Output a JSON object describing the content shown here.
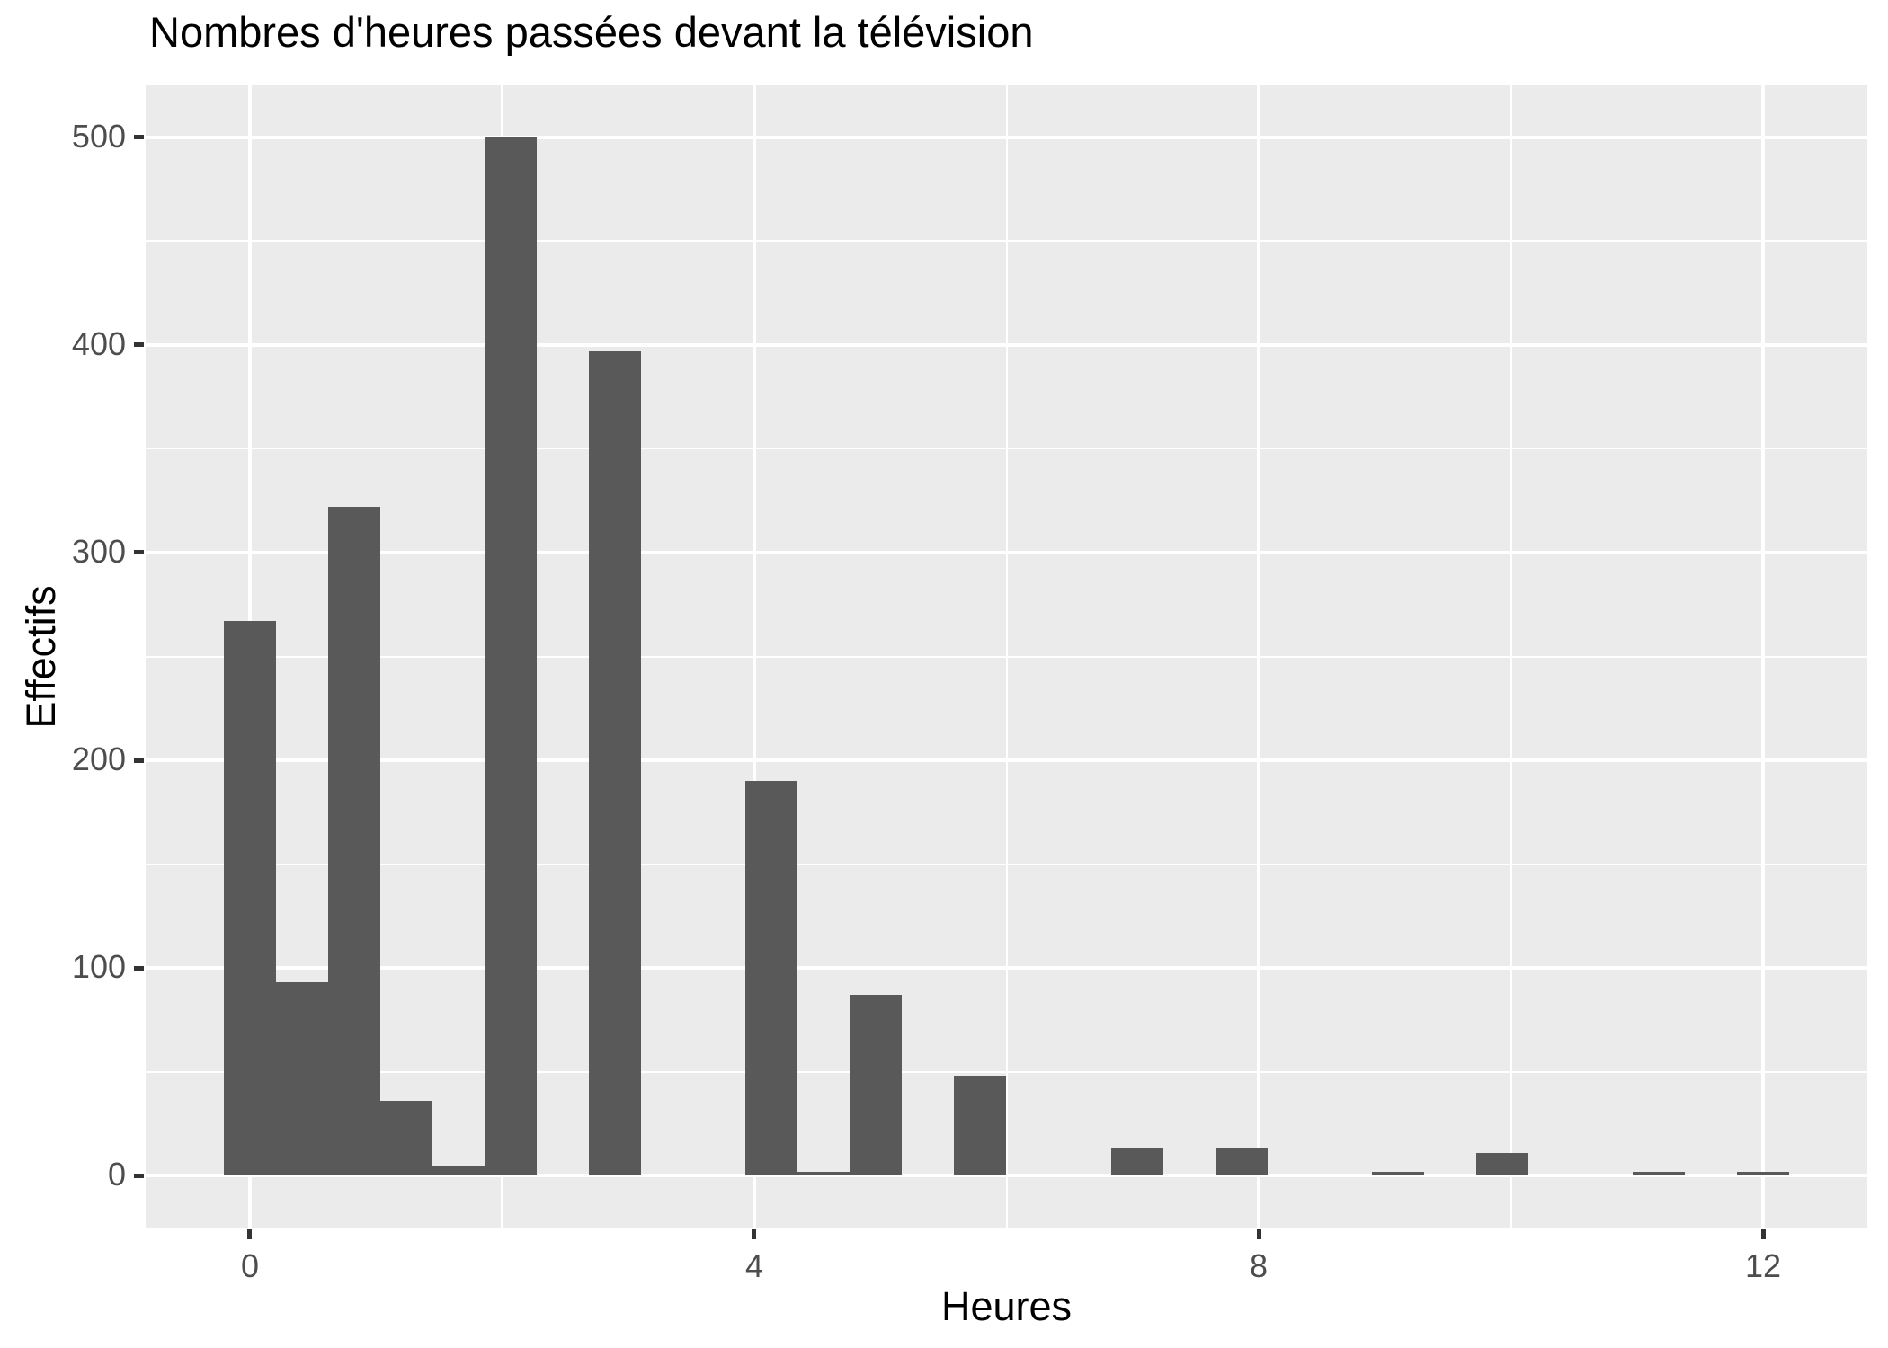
{
  "title": "Nombres d'heures passées devant la télévision",
  "chart_data": {
    "type": "bar",
    "subtype": "histogram",
    "title": "Nombres d'heures passées devant la télévision",
    "xlabel": "Heures",
    "ylabel": "Effectifs",
    "x_ticks": [
      0,
      4,
      8,
      12
    ],
    "x_minor_ticks": [
      2,
      6,
      10
    ],
    "y_ticks": [
      0,
      100,
      200,
      300,
      400,
      500
    ],
    "y_minor_ticks": [
      50,
      150,
      250,
      350,
      450
    ],
    "xlim": [
      -0.827,
      12.827
    ],
    "ylim": [
      -25,
      525
    ],
    "grid": "on",
    "legend": "none",
    "bin_width": 0.4138,
    "bin_centers": [
      0,
      0.414,
      0.828,
      1.241,
      1.655,
      2.069,
      2.483,
      2.897,
      3.31,
      3.724,
      4.138,
      4.552,
      4.966,
      5.379,
      5.793,
      6.207,
      6.621,
      7.034,
      7.448,
      7.862,
      8.276,
      8.69,
      9.103,
      9.517,
      9.931,
      10.345,
      10.759,
      11.172,
      11.586,
      12.0
    ],
    "counts": [
      267,
      93,
      322,
      36,
      5,
      500,
      0,
      397,
      0,
      0,
      190,
      2,
      87,
      0,
      48,
      0,
      0,
      13,
      0,
      13,
      0,
      0,
      2,
      0,
      11,
      0,
      0,
      2,
      0,
      2
    ],
    "colors": {
      "bar_fill": "#595959",
      "panel_background": "#EBEBEB",
      "gridline": "#FFFFFF",
      "axis_text": "#4D4D4D",
      "tick_mark": "#333333",
      "title_text": "#000000"
    }
  }
}
